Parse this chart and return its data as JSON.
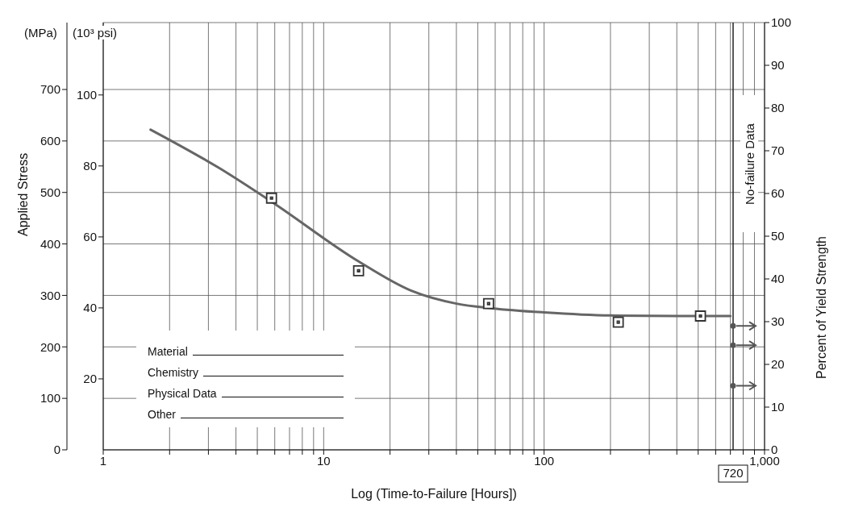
{
  "chart_data": {
    "type": "scatter",
    "xlabel": "Log (Time-to-Failure [Hours])",
    "ylabel": "Applied Stress",
    "y2label": "Percent of Yield Strength",
    "y3label": "(10³ psi)",
    "annotations": [
      "(MPa)",
      "No-failure Data",
      "Material",
      "Chemistry",
      "Physical Data",
      "Other"
    ],
    "log": "x",
    "grid": true,
    "xlim": [
      1,
      1000
    ],
    "xticks": [
      1,
      {
        "value": 2,
        "label": null
      },
      {
        "value": 3,
        "label": null
      },
      {
        "value": 4,
        "label": null
      },
      {
        "value": 5,
        "label": null
      },
      {
        "value": 6,
        "label": null
      },
      {
        "value": 7,
        "label": null
      },
      {
        "value": 8,
        "label": null
      },
      {
        "value": 9,
        "label": null
      },
      10,
      {
        "value": 20,
        "label": null
      },
      {
        "value": 30,
        "label": null
      },
      {
        "value": 40,
        "label": null
      },
      {
        "value": 50,
        "label": null
      },
      {
        "value": 60,
        "label": null
      },
      {
        "value": 70,
        "label": null
      },
      {
        "value": 80,
        "label": null
      },
      {
        "value": 90,
        "label": null
      },
      100,
      {
        "value": 200,
        "label": null
      },
      {
        "value": 300,
        "label": null
      },
      {
        "value": 400,
        "label": null
      },
      {
        "value": 500,
        "label": null
      },
      {
        "value": 600,
        "label": null
      },
      {
        "value": 700,
        "label": null
      },
      {
        "value": 800,
        "label": null
      },
      {
        "value": 900,
        "label": null
      },
      {
        "value": 1000,
        "label": "1,000"
      }
    ],
    "ylim": [
      0,
      830
    ],
    "yticks": [
      0,
      100,
      200,
      300,
      400,
      500,
      600,
      700
    ],
    "y2lim": [
      0,
      100
    ],
    "y2ticks": [
      0,
      10,
      20,
      30,
      40,
      50,
      60,
      70,
      80,
      90,
      100
    ],
    "y3lim": [
      0,
      120.4
    ],
    "y3ticks": [
      20,
      40,
      60,
      80,
      100
    ],
    "ref_lines": [
      {
        "axis": "x",
        "value": 720,
        "label": "720",
        "color": "#222222"
      }
    ],
    "series": [
      {
        "type": "scatter",
        "x": [
          5.8,
          14.4,
          56,
          217,
          512
        ],
        "values": [
          489,
          348,
          284,
          248,
          260
        ],
        "color": "#333333",
        "marker": "square"
      },
      {
        "type": "line",
        "x": [
          1.64,
          3.34,
          5.8,
          14.4,
          25,
          40,
          58,
          100,
          200,
          400,
          700
        ],
        "values": [
          622,
          548,
          482,
          366,
          309,
          284,
          275,
          267,
          261,
          260,
          260
        ],
        "color": "#666666"
      },
      {
        "type": "scatter",
        "axis": "y2",
        "x": [
          720,
          720,
          720
        ],
        "values": [
          29,
          24.5,
          15
        ],
        "color": "#555555",
        "marker": "circle"
      }
    ]
  }
}
